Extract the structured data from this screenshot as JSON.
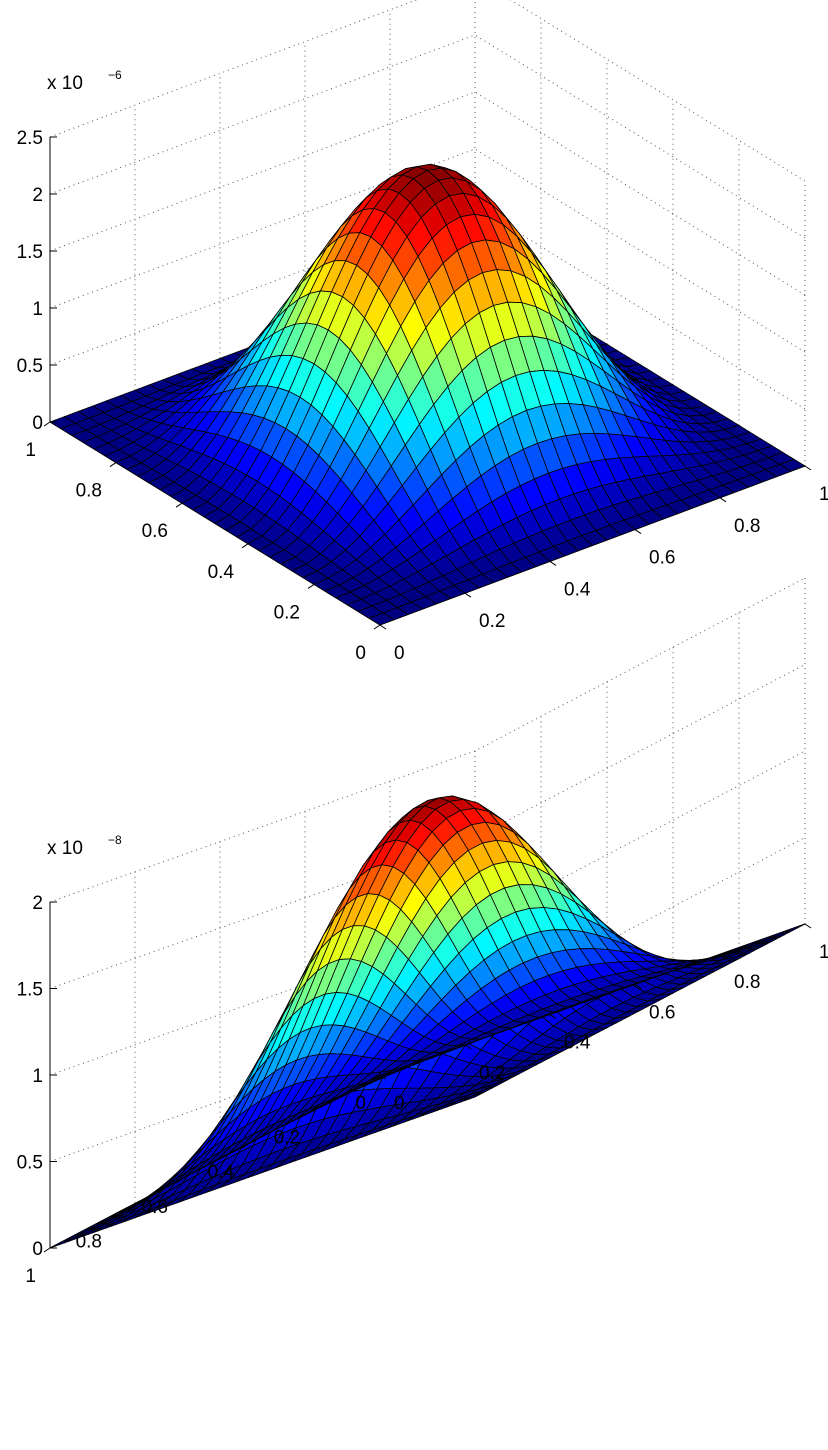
{
  "chart_data": [
    {
      "type": "surface",
      "title": "",
      "xlabel": "",
      "ylabel": "",
      "zlabel": "",
      "function": "z = peak * sin(pi*x)^2 * sin(pi*y)^2",
      "grid_points": 30,
      "peak": 2.4e-06,
      "z_exponent_label": "x 10",
      "z_exponent_power": "−6",
      "xlim": [
        0,
        1
      ],
      "ylim": [
        0,
        1
      ],
      "zlim": [
        0,
        2.5e-06
      ],
      "x_ticks": [
        "0",
        "0.2",
        "0.4",
        "0.6",
        "0.8",
        "1"
      ],
      "y_ticks": [
        "0",
        "0.2",
        "0.4",
        "0.6",
        "0.8",
        "1"
      ],
      "z_ticks": [
        "0",
        "0.5",
        "1",
        "1.5",
        "2",
        "2.5"
      ],
      "z_tick_values": [
        0,
        0.5,
        1,
        1.5,
        2,
        2.5
      ],
      "z_tick_max": 2.5,
      "colormap": "jet",
      "grid": true
    },
    {
      "type": "surface",
      "title": "",
      "xlabel": "",
      "ylabel": "",
      "zlabel": "",
      "function": "z = peak * sin(pi*x)^2 * sin(pi*y)^2",
      "grid_points": 30,
      "peak": 1.65e-08,
      "z_exponent_label": "x 10",
      "z_exponent_power": "−8",
      "xlim": [
        0,
        1
      ],
      "ylim": [
        0,
        1
      ],
      "zlim": [
        0,
        2e-08
      ],
      "x_ticks": [
        "0",
        "0.2",
        "0.4",
        "0.6",
        "0.8",
        "1"
      ],
      "y_ticks": [
        "0",
        "0.2",
        "0.4",
        "0.6",
        "0.8",
        "1"
      ],
      "z_ticks": [
        "0",
        "0.5",
        "1",
        "1.5",
        "2"
      ],
      "z_tick_values": [
        0,
        0.5,
        1,
        1.5,
        2
      ],
      "z_tick_max": 2,
      "colormap": "jet",
      "grid": true
    }
  ]
}
